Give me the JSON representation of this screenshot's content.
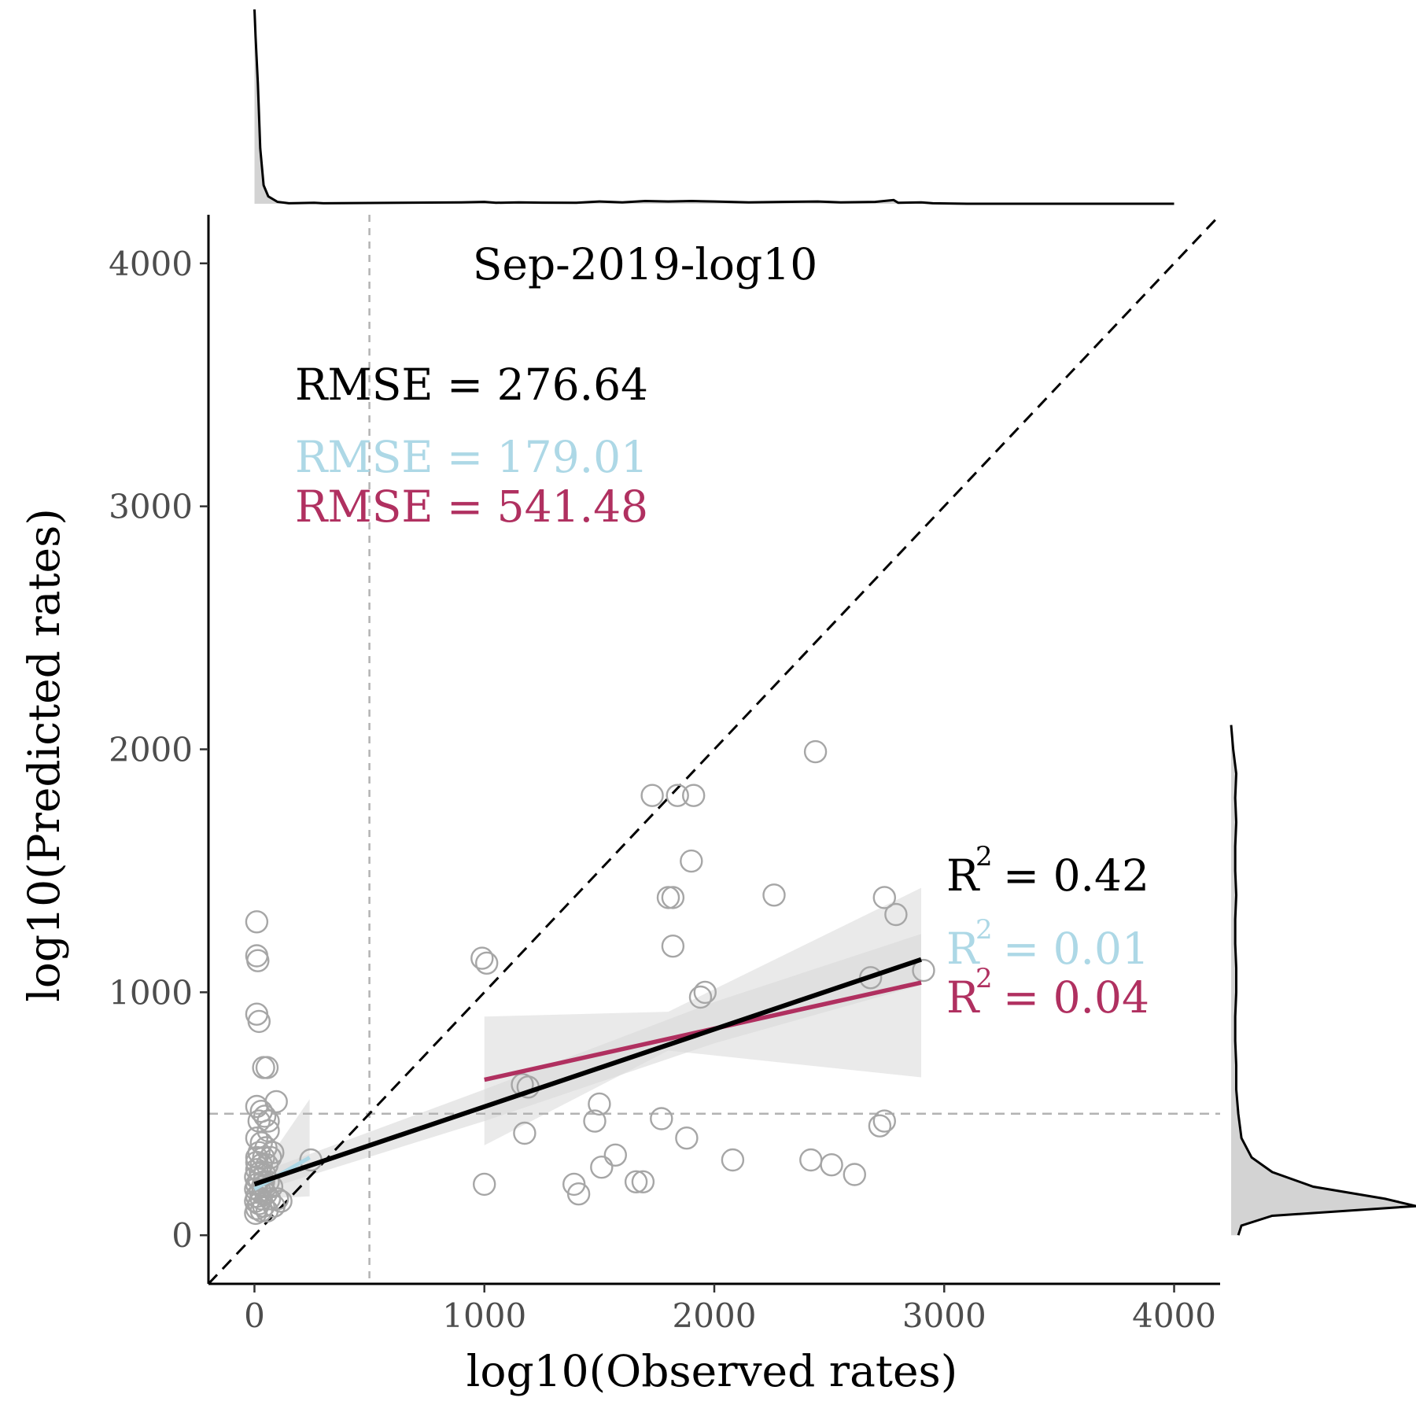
{
  "chart_data": {
    "type": "scatter",
    "title": "Sep-2019-log10",
    "xlabel": "log10(Observed rates)",
    "ylabel": "log10(Predicted rates)",
    "xlim": [
      -200,
      4200
    ],
    "ylim": [
      -200,
      4200
    ],
    "x_ticks": [
      0,
      1000,
      2000,
      3000,
      4000
    ],
    "y_ticks": [
      0,
      1000,
      2000,
      3000,
      4000
    ],
    "x_tick_labels": [
      "0",
      "1000",
      "2000",
      "3000",
      "4000"
    ],
    "y_tick_labels": [
      "0",
      "1000",
      "2000",
      "3000",
      "4000"
    ],
    "grid": false,
    "threshold": 500,
    "colors": {
      "overall": "#000000",
      "low": "#add8e6",
      "high": "#b03060",
      "points": "#a6a6a6",
      "band": "#d9d9d9",
      "threshold_line": "#b3b3b3"
    },
    "annotations": {
      "rmse_all": "RMSE = 276.64",
      "rmse_low": "RMSE = 179.01",
      "rmse_high": "RMSE = 541.48",
      "r2_all_value": "= 0.42",
      "r2_low_value": "= 0.01",
      "r2_high_value": "= 0.04",
      "r2_base": "R",
      "r2_sup": "2"
    },
    "fits": {
      "overall": {
        "x": [
          0,
          2900
        ],
        "y": [
          210,
          1135
        ]
      },
      "low": {
        "x": [
          0,
          240
        ],
        "y": [
          190,
          320
        ]
      },
      "high": {
        "x": [
          1000,
          2900
        ],
        "y": [
          640,
          1040
        ]
      }
    },
    "bands": {
      "overall": {
        "x": [
          0,
          1000,
          2000,
          2900
        ],
        "lower": [
          175,
          470,
          790,
          1030
        ],
        "upper": [
          250,
          600,
          960,
          1240
        ]
      },
      "low": {
        "x": [
          0,
          240
        ],
        "lower": [
          150,
          160
        ],
        "upper": [
          230,
          560
        ]
      },
      "high": {
        "x": [
          1000,
          1800,
          2900
        ],
        "lower": [
          370,
          760,
          650
        ],
        "upper": [
          900,
          920,
          1430
        ]
      }
    },
    "points": [
      [
        10,
        1290
      ],
      [
        10,
        1150
      ],
      [
        15,
        1130
      ],
      [
        10,
        910
      ],
      [
        20,
        880
      ],
      [
        40,
        690
      ],
      [
        55,
        690
      ],
      [
        95,
        550
      ],
      [
        10,
        530
      ],
      [
        30,
        510
      ],
      [
        45,
        490
      ],
      [
        20,
        470
      ],
      [
        60,
        470
      ],
      [
        60,
        430
      ],
      [
        10,
        400
      ],
      [
        30,
        380
      ],
      [
        50,
        360
      ],
      [
        20,
        340
      ],
      [
        80,
        340
      ],
      [
        10,
        320
      ],
      [
        40,
        320
      ],
      [
        70,
        320
      ],
      [
        10,
        300
      ],
      [
        30,
        290
      ],
      [
        55,
        290
      ],
      [
        10,
        270
      ],
      [
        25,
        260
      ],
      [
        45,
        250
      ],
      [
        5,
        240
      ],
      [
        20,
        230
      ],
      [
        40,
        220
      ],
      [
        60,
        220
      ],
      [
        10,
        210
      ],
      [
        35,
        200
      ],
      [
        75,
        200
      ],
      [
        5,
        190
      ],
      [
        25,
        180
      ],
      [
        50,
        170
      ],
      [
        10,
        160
      ],
      [
        30,
        150
      ],
      [
        65,
        150
      ],
      [
        5,
        140
      ],
      [
        20,
        130
      ],
      [
        40,
        120
      ],
      [
        85,
        120
      ],
      [
        10,
        110
      ],
      [
        30,
        100
      ],
      [
        55,
        100
      ],
      [
        5,
        90
      ],
      [
        100,
        150
      ],
      [
        115,
        140
      ],
      [
        245,
        310
      ],
      [
        990,
        1140
      ],
      [
        1010,
        1120
      ],
      [
        1000,
        210
      ],
      [
        1165,
        620
      ],
      [
        1190,
        610
      ],
      [
        1175,
        420
      ],
      [
        1390,
        210
      ],
      [
        1410,
        170
      ],
      [
        1480,
        470
      ],
      [
        1500,
        540
      ],
      [
        1510,
        280
      ],
      [
        1570,
        330
      ],
      [
        1660,
        220
      ],
      [
        1690,
        220
      ],
      [
        1730,
        1810
      ],
      [
        1770,
        480
      ],
      [
        1800,
        1390
      ],
      [
        1820,
        1390
      ],
      [
        1820,
        1190
      ],
      [
        1840,
        1810
      ],
      [
        1880,
        400
      ],
      [
        1900,
        1540
      ],
      [
        1910,
        1810
      ],
      [
        1940,
        980
      ],
      [
        1960,
        1000
      ],
      [
        2080,
        310
      ],
      [
        2260,
        1400
      ],
      [
        2420,
        310
      ],
      [
        2440,
        1990
      ],
      [
        2510,
        290
      ],
      [
        2610,
        250
      ],
      [
        2680,
        1060
      ],
      [
        2720,
        450
      ],
      [
        2740,
        470
      ],
      [
        2740,
        1390
      ],
      [
        2790,
        1320
      ],
      [
        2910,
        1090
      ]
    ],
    "x_density": [
      [
        0,
        210
      ],
      [
        5,
        180
      ],
      [
        15,
        130
      ],
      [
        25,
        60
      ],
      [
        40,
        20
      ],
      [
        60,
        8
      ],
      [
        100,
        2
      ],
      [
        150,
        0.5
      ],
      [
        260,
        1
      ],
      [
        300,
        0.5
      ],
      [
        900,
        1.5
      ],
      [
        1000,
        2
      ],
      [
        1050,
        1
      ],
      [
        1150,
        1.5
      ],
      [
        1250,
        1.2
      ],
      [
        1400,
        1
      ],
      [
        1500,
        2.5
      ],
      [
        1600,
        1.5
      ],
      [
        1700,
        3
      ],
      [
        1800,
        2.5
      ],
      [
        1900,
        3
      ],
      [
        2000,
        2.5
      ],
      [
        2150,
        1.5
      ],
      [
        2300,
        2
      ],
      [
        2450,
        2.5
      ],
      [
        2550,
        1.5
      ],
      [
        2700,
        2
      ],
      [
        2780,
        4
      ],
      [
        2800,
        1
      ],
      [
        2900,
        1.5
      ],
      [
        2950,
        0.5
      ],
      [
        3100,
        0
      ],
      [
        4000,
        0
      ]
    ],
    "y_density": [
      [
        0,
        7
      ],
      [
        40,
        10
      ],
      [
        80,
        40
      ],
      [
        120,
        180
      ],
      [
        150,
        150
      ],
      [
        200,
        80
      ],
      [
        260,
        40
      ],
      [
        320,
        20
      ],
      [
        400,
        10
      ],
      [
        500,
        7
      ],
      [
        600,
        5
      ],
      [
        700,
        5
      ],
      [
        800,
        4
      ],
      [
        900,
        4
      ],
      [
        1000,
        5
      ],
      [
        1100,
        5
      ],
      [
        1200,
        4
      ],
      [
        1300,
        4
      ],
      [
        1400,
        5
      ],
      [
        1500,
        4
      ],
      [
        1600,
        4
      ],
      [
        1700,
        5
      ],
      [
        1800,
        4
      ],
      [
        1900,
        5
      ],
      [
        2000,
        2
      ],
      [
        2100,
        0
      ]
    ]
  }
}
